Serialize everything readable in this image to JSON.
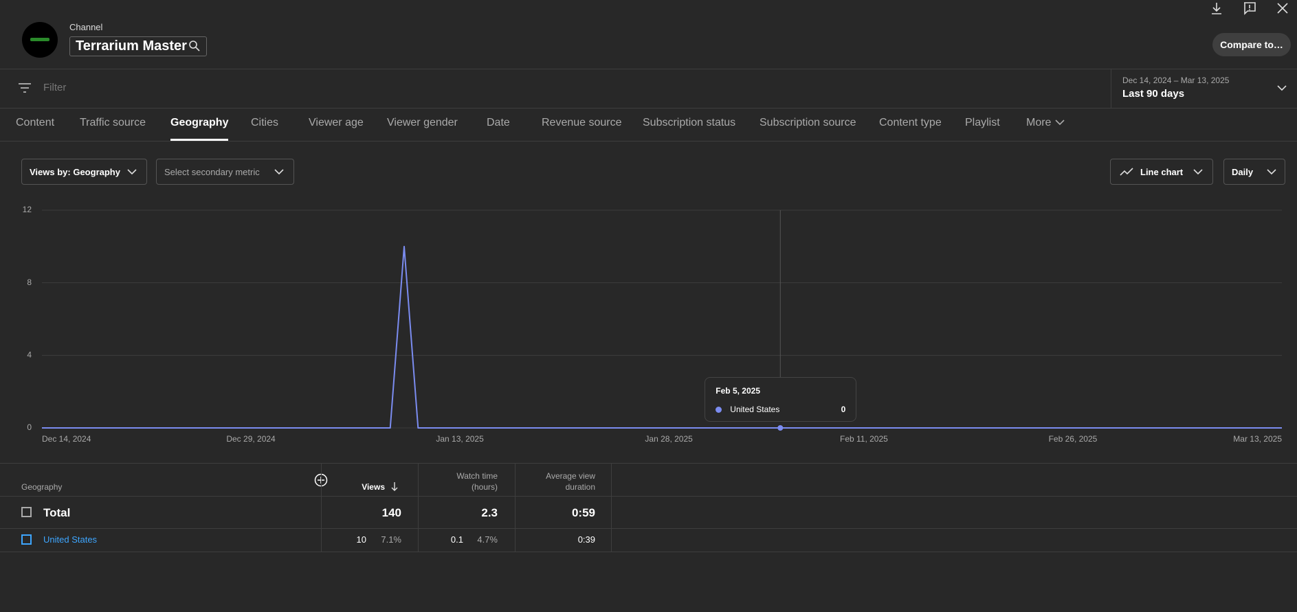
{
  "header": {
    "label": "Channel",
    "channel_name": "Terrarium Master",
    "compare_button": "Compare to…"
  },
  "filter": {
    "placeholder": "Filter",
    "date_range": "Dec 14, 2024 – Mar 13, 2025",
    "period": "Last 90 days"
  },
  "tabs": {
    "items": [
      "Content",
      "Traffic source",
      "Geography",
      "Cities",
      "Viewer age",
      "Viewer gender",
      "Date",
      "Revenue source",
      "Subscription status",
      "Subscription source",
      "Content type",
      "Playlist",
      "More"
    ],
    "selected": "Geography"
  },
  "controls": {
    "primary_metric": "Views by: Geography",
    "secondary_metric": "Select secondary metric",
    "chart_type": "Line chart",
    "interval": "Daily"
  },
  "chart_data": {
    "type": "line",
    "x": [
      "Dec 14, 2024",
      "Dec 15, 2024",
      "Dec 16, 2024",
      "Dec 17, 2024",
      "Dec 18, 2024",
      "Dec 19, 2024",
      "Dec 20, 2024",
      "Dec 21, 2024",
      "Dec 22, 2024",
      "Dec 23, 2024",
      "Dec 24, 2024",
      "Dec 25, 2024",
      "Dec 26, 2024",
      "Dec 27, 2024",
      "Dec 28, 2024",
      "Dec 29, 2024",
      "Dec 30, 2024",
      "Dec 31, 2024",
      "Jan 1, 2025",
      "Jan 2, 2025",
      "Jan 3, 2025",
      "Jan 4, 2025",
      "Jan 5, 2025",
      "Jan 6, 2025",
      "Jan 7, 2025",
      "Jan 8, 2025",
      "Jan 9, 2025",
      "Jan 10, 2025",
      "Jan 11, 2025",
      "Jan 12, 2025",
      "Jan 13, 2025",
      "Jan 14, 2025",
      "Jan 15, 2025",
      "Jan 16, 2025",
      "Jan 17, 2025",
      "Jan 18, 2025",
      "Jan 19, 2025",
      "Jan 20, 2025",
      "Jan 21, 2025",
      "Jan 22, 2025",
      "Jan 23, 2025",
      "Jan 24, 2025",
      "Jan 25, 2025",
      "Jan 26, 2025",
      "Jan 27, 2025",
      "Jan 28, 2025",
      "Jan 29, 2025",
      "Jan 30, 2025",
      "Jan 31, 2025",
      "Feb 1, 2025",
      "Feb 2, 2025",
      "Feb 3, 2025",
      "Feb 4, 2025",
      "Feb 5, 2025",
      "Feb 6, 2025",
      "Feb 7, 2025",
      "Feb 8, 2025",
      "Feb 9, 2025",
      "Feb 10, 2025",
      "Feb 11, 2025",
      "Feb 12, 2025",
      "Feb 13, 2025",
      "Feb 14, 2025",
      "Feb 15, 2025",
      "Feb 16, 2025",
      "Feb 17, 2025",
      "Feb 18, 2025",
      "Feb 19, 2025",
      "Feb 20, 2025",
      "Feb 21, 2025",
      "Feb 22, 2025",
      "Feb 23, 2025",
      "Feb 24, 2025",
      "Feb 25, 2025",
      "Feb 26, 2025",
      "Feb 27, 2025",
      "Feb 28, 2025",
      "Mar 1, 2025",
      "Mar 2, 2025",
      "Mar 3, 2025",
      "Mar 4, 2025",
      "Mar 5, 2025",
      "Mar 6, 2025",
      "Mar 7, 2025",
      "Mar 8, 2025",
      "Mar 9, 2025",
      "Mar 10, 2025",
      "Mar 11, 2025",
      "Mar 12, 2025",
      "Mar 13, 2025"
    ],
    "series": [
      {
        "name": "United States",
        "color": "#7b8cf0",
        "values": [
          0,
          0,
          0,
          0,
          0,
          0,
          0,
          0,
          0,
          0,
          0,
          0,
          0,
          0,
          0,
          0,
          0,
          0,
          0,
          0,
          0,
          0,
          0,
          0,
          0,
          0,
          10,
          0,
          0,
          0,
          0,
          0,
          0,
          0,
          0,
          0,
          0,
          0,
          0,
          0,
          0,
          0,
          0,
          0,
          0,
          0,
          0,
          0,
          0,
          0,
          0,
          0,
          0,
          0,
          0,
          0,
          0,
          0,
          0,
          0,
          0,
          0,
          0,
          0,
          0,
          0,
          0,
          0,
          0,
          0,
          0,
          0,
          0,
          0,
          0,
          0,
          0,
          0,
          0,
          0,
          0,
          0,
          0,
          0,
          0,
          0,
          0,
          0,
          0,
          0
        ]
      }
    ],
    "ylim": [
      0,
      12
    ],
    "yticks": [
      0,
      4,
      8,
      12
    ],
    "xticks": [
      "Dec 14, 2024",
      "Dec 29, 2024",
      "Jan 13, 2025",
      "Jan 28, 2025",
      "Feb 11, 2025",
      "Feb 26, 2025",
      "Mar 13, 2025"
    ],
    "grid": true,
    "tooltip": "Feb 5, 2025"
  },
  "table": {
    "columns": [
      "Geography",
      "Views",
      [
        "Watch time",
        "(hours)"
      ],
      [
        "Average view",
        "duration"
      ]
    ],
    "rows": [
      {
        "label": "Total",
        "views": 140,
        "watch_time": 2.3,
        "avg_duration": "0:59"
      },
      {
        "label": "United States",
        "views": 10,
        "views_share": "7.1%",
        "watch_time": 0.1,
        "watch_share": "4.7%",
        "avg_duration": "0:39"
      }
    ]
  }
}
